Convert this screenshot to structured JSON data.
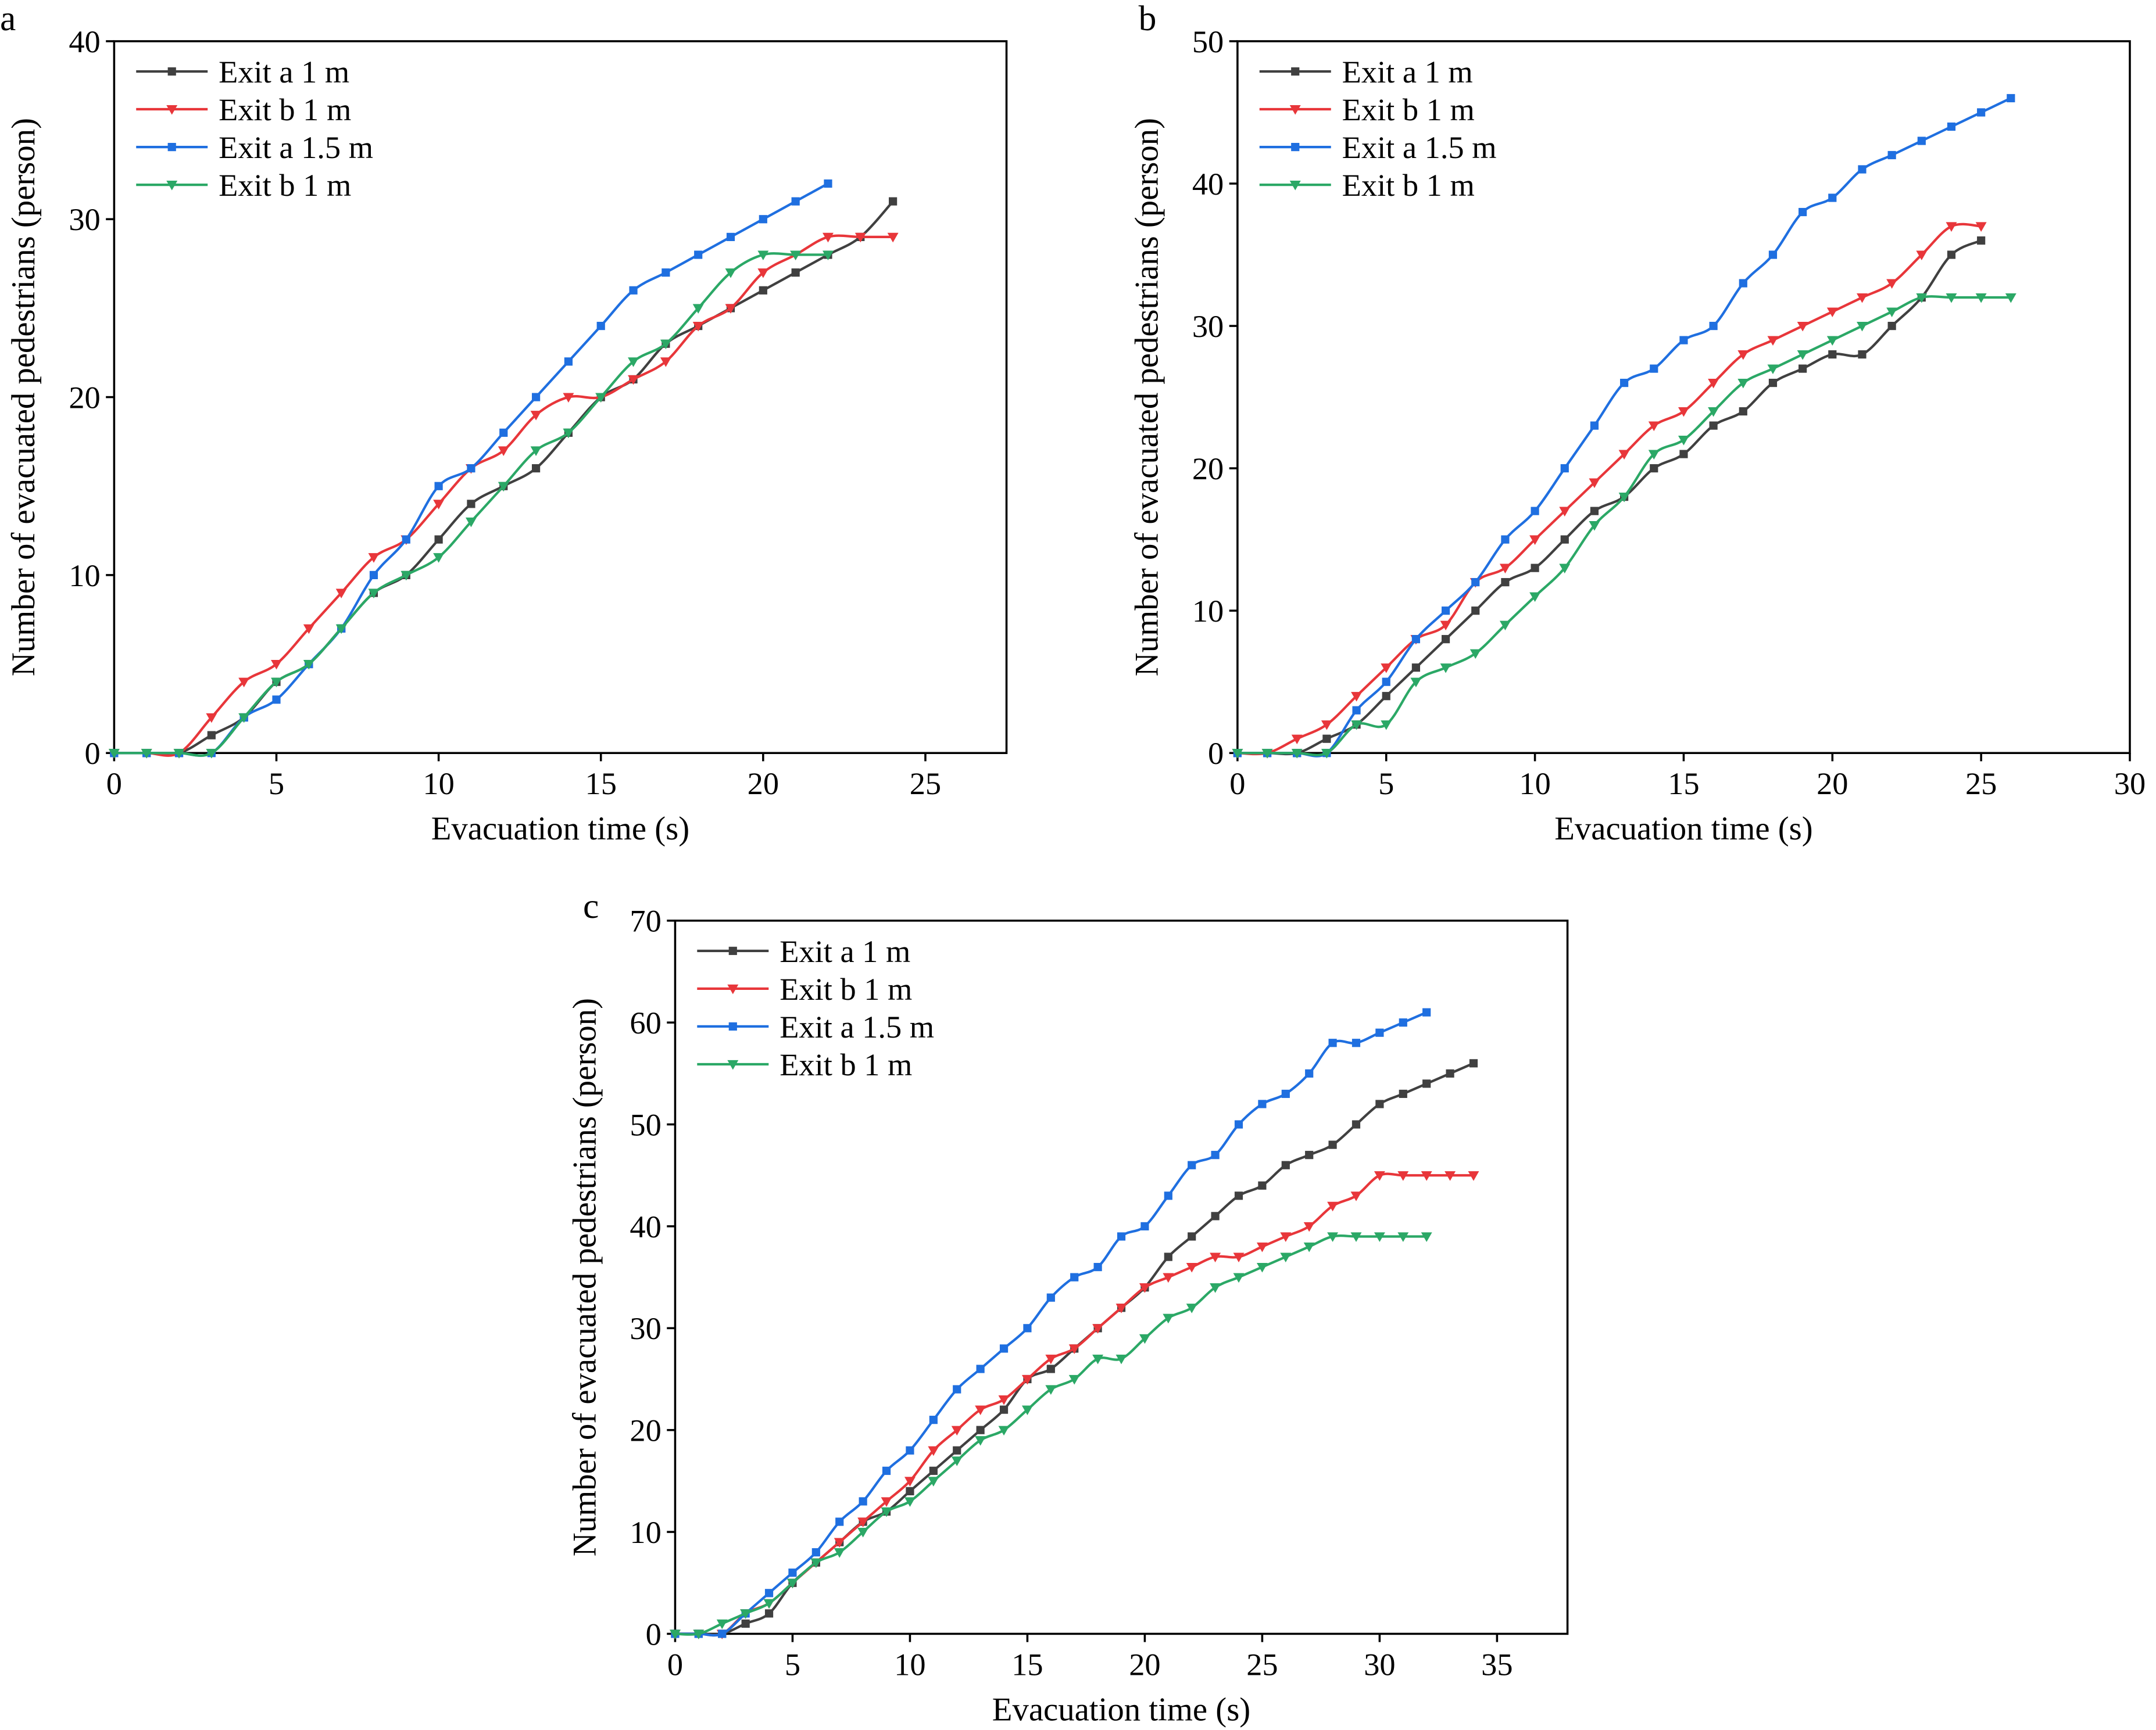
{
  "colors": {
    "exit_a_1m": "#404040",
    "exit_b_1m": "#e8363a",
    "exit_a_1_5m": "#1f6fe0",
    "exit_b_1m_green": "#2ba866"
  },
  "chart_data": [
    {
      "panel_label": "a",
      "type": "line",
      "xlabel": "Evacuation time (s)",
      "ylabel": "Number of evacuated pedestrians (person)",
      "xlim": [
        0,
        27.5
      ],
      "ylim": [
        0,
        40
      ],
      "xticks": [
        "0",
        "5",
        "10",
        "15",
        "20",
        "25"
      ],
      "yticks": [
        "0",
        "10",
        "20",
        "30",
        "40"
      ],
      "legend_position": "top-left",
      "series": [
        {
          "name": "Exit a 1 m",
          "marker": "square",
          "color": "#404040",
          "values": [
            0,
            0,
            0,
            1,
            2,
            4,
            5,
            7,
            9,
            10,
            12,
            14,
            15,
            16,
            18,
            20,
            21,
            23,
            24,
            25,
            26,
            27,
            28,
            29,
            31
          ]
        },
        {
          "name": "Exit b 1 m",
          "marker": "triangle-down",
          "color": "#e8363a",
          "values": [
            0,
            0,
            0,
            2,
            4,
            5,
            7,
            9,
            11,
            12,
            14,
            16,
            17,
            19,
            20,
            20,
            21,
            22,
            24,
            25,
            27,
            28,
            29,
            29,
            29
          ]
        },
        {
          "name": "Exit a 1.5 m",
          "marker": "square",
          "color": "#1f6fe0",
          "values": [
            0,
            0,
            0,
            0,
            2,
            3,
            5,
            7,
            10,
            12,
            15,
            16,
            18,
            20,
            22,
            24,
            26,
            27,
            28,
            29,
            30,
            31,
            32
          ]
        },
        {
          "name": "Exit b 1 m",
          "marker": "triangle-down",
          "color": "#2ba866",
          "values": [
            0,
            0,
            0,
            0,
            2,
            4,
            5,
            7,
            9,
            10,
            11,
            13,
            15,
            17,
            18,
            20,
            22,
            23,
            25,
            27,
            28,
            28,
            28
          ]
        }
      ]
    },
    {
      "panel_label": "b",
      "type": "line",
      "xlabel": "Evacuation time (s)",
      "ylabel": "Number of evacuated pedestrians (person)",
      "xlim": [
        0,
        30
      ],
      "ylim": [
        0,
        50
      ],
      "xticks": [
        "0",
        "5",
        "10",
        "15",
        "20",
        "25",
        "30"
      ],
      "yticks": [
        "0",
        "10",
        "20",
        "30",
        "40",
        "50"
      ],
      "legend_position": "top-left",
      "series": [
        {
          "name": "Exit a 1 m",
          "marker": "square",
          "color": "#404040",
          "values": [
            0,
            0,
            0,
            1,
            2,
            4,
            6,
            8,
            10,
            12,
            13,
            15,
            17,
            18,
            20,
            21,
            23,
            24,
            26,
            27,
            28,
            28,
            30,
            32,
            35,
            36
          ]
        },
        {
          "name": "Exit b 1 m",
          "marker": "triangle-down",
          "color": "#e8363a",
          "values": [
            0,
            0,
            1,
            2,
            4,
            6,
            8,
            9,
            12,
            13,
            15,
            17,
            19,
            21,
            23,
            24,
            26,
            28,
            29,
            30,
            31,
            32,
            33,
            35,
            37,
            37
          ]
        },
        {
          "name": "Exit a 1.5 m",
          "marker": "square",
          "color": "#1f6fe0",
          "values": [
            0,
            0,
            0,
            0,
            3,
            5,
            8,
            10,
            12,
            15,
            17,
            20,
            23,
            26,
            27,
            29,
            30,
            33,
            35,
            38,
            39,
            41,
            42,
            43,
            44,
            45,
            46
          ]
        },
        {
          "name": "Exit b 1 m",
          "marker": "triangle-down",
          "color": "#2ba866",
          "values": [
            0,
            0,
            0,
            0,
            2,
            2,
            5,
            6,
            7,
            9,
            11,
            13,
            16,
            18,
            21,
            22,
            24,
            26,
            27,
            28,
            29,
            30,
            31,
            32,
            32,
            32,
            32
          ]
        }
      ]
    },
    {
      "panel_label": "c",
      "type": "line",
      "xlabel": "Evacuation time (s)",
      "ylabel": "Number of evacuated pedestrians (person)",
      "xlim": [
        0,
        38
      ],
      "ylim": [
        0,
        70
      ],
      "xticks": [
        "0",
        "5",
        "10",
        "15",
        "20",
        "25",
        "30",
        "35"
      ],
      "yticks": [
        "0",
        "10",
        "20",
        "30",
        "40",
        "50",
        "60",
        "70"
      ],
      "legend_position": "top-left",
      "series": [
        {
          "name": "Exit a 1 m",
          "marker": "square",
          "color": "#404040",
          "values": [
            0,
            0,
            0,
            1,
            2,
            5,
            7,
            9,
            11,
            12,
            14,
            16,
            18,
            20,
            22,
            25,
            26,
            28,
            30,
            32,
            34,
            37,
            39,
            41,
            43,
            44,
            46,
            47,
            48,
            50,
            52,
            53,
            54,
            55,
            56
          ]
        },
        {
          "name": "Exit b 1 m",
          "marker": "triangle-down",
          "color": "#e8363a",
          "values": [
            0,
            0,
            0,
            2,
            3,
            5,
            7,
            9,
            11,
            13,
            15,
            18,
            20,
            22,
            23,
            25,
            27,
            28,
            30,
            32,
            34,
            35,
            36,
            37,
            37,
            38,
            39,
            40,
            42,
            43,
            45,
            45,
            45,
            45,
            45
          ]
        },
        {
          "name": "Exit a 1.5 m",
          "marker": "square",
          "color": "#1f6fe0",
          "values": [
            0,
            0,
            0,
            2,
            4,
            6,
            8,
            11,
            13,
            16,
            18,
            21,
            24,
            26,
            28,
            30,
            33,
            35,
            36,
            39,
            40,
            43,
            46,
            47,
            50,
            52,
            53,
            55,
            58,
            58,
            59,
            60,
            61
          ]
        },
        {
          "name": "Exit b 1 m",
          "marker": "triangle-down",
          "color": "#2ba866",
          "values": [
            0,
            0,
            1,
            2,
            3,
            5,
            7,
            8,
            10,
            12,
            13,
            15,
            17,
            19,
            20,
            22,
            24,
            25,
            27,
            27,
            29,
            31,
            32,
            34,
            35,
            36,
            37,
            38,
            39,
            39,
            39,
            39,
            39
          ]
        }
      ]
    }
  ]
}
